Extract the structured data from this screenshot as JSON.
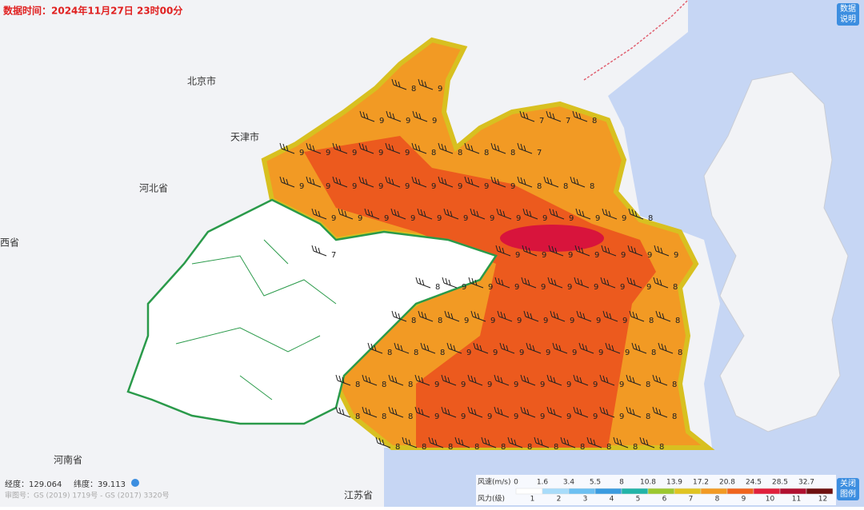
{
  "header": {
    "data_time": "数据时间：2024年11月27日 23时00分"
  },
  "buttons": {
    "info": "数据说明",
    "close_legend": "关闭图例"
  },
  "places": {
    "beijing": "北京市",
    "tianjin": "天津市",
    "hebei": "河北省",
    "shanxi": "西省",
    "henan": "河南省",
    "jiangsu": "江苏省"
  },
  "footer": {
    "longitude": "经度：129.064",
    "latitude": "纬度：39.113",
    "approval": "审图号：GS (2019) 1719号 - GS (2017) 3320号"
  },
  "wind_labels": [
    [
      "8",
      "9"
    ],
    [
      "9",
      "9",
      "9"
    ],
    [
      "7",
      "7",
      "8"
    ],
    [
      "9",
      "9",
      "9",
      "9",
      "9",
      "8",
      "8",
      "8",
      "8",
      "7"
    ],
    [
      "9",
      "9",
      "9",
      "9",
      "9",
      "9",
      "9",
      "9",
      "9",
      "8",
      "8",
      "8"
    ],
    [
      "9",
      "9",
      "9",
      "9",
      "9",
      "9",
      "9",
      "9",
      "9",
      "9",
      "9",
      "9",
      "8"
    ],
    [
      "7"
    ],
    [
      "9",
      "9",
      "9",
      "9",
      "9",
      "9",
      "9"
    ],
    [
      "8",
      "9",
      "9",
      "9",
      "9",
      "9",
      "9",
      "9",
      "9",
      "8"
    ],
    [
      "8",
      "8",
      "9",
      "9",
      "9",
      "9",
      "9",
      "9",
      "9",
      "8",
      "8"
    ],
    [
      "8",
      "8",
      "8",
      "9",
      "9",
      "9",
      "9",
      "9",
      "9",
      "9",
      "8",
      "8"
    ],
    [
      "8",
      "8",
      "8",
      "9",
      "9",
      "9",
      "9",
      "9",
      "9",
      "9",
      "9",
      "8",
      "8"
    ],
    [
      "8",
      "8",
      "8",
      "9",
      "9",
      "9",
      "9",
      "9",
      "9",
      "9",
      "9",
      "8",
      "8"
    ],
    [
      "8",
      "8",
      "8",
      "8",
      "8",
      "8",
      "8",
      "8",
      "8",
      "8",
      "8"
    ]
  ],
  "legend": {
    "speed_title": "风速(m/s)",
    "force_title": "风力(级)",
    "speeds": [
      0,
      1.6,
      3.4,
      5.5,
      8,
      10.8,
      13.9,
      17.2,
      20.8,
      24.5,
      28.5,
      32.7
    ],
    "forces": [
      1,
      2,
      3,
      4,
      5,
      6,
      7,
      8,
      9,
      10,
      11,
      12
    ],
    "colors": [
      "#ffffff",
      "#a8dcfa",
      "#6cc0f2",
      "#3a9be0",
      "#22b4a8",
      "#9cc830",
      "#e0c422",
      "#f29a24",
      "#f0641e",
      "#e0203c",
      "#b01030",
      "#6e1010"
    ]
  }
}
